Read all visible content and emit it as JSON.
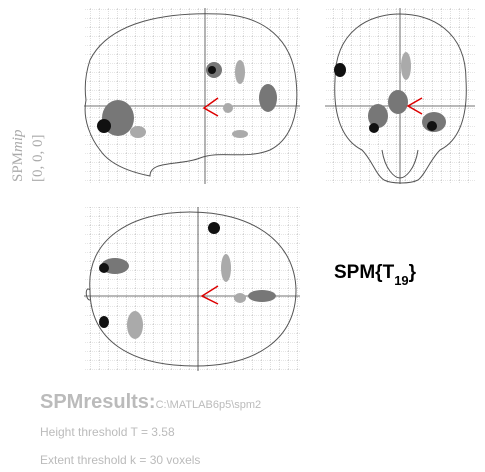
{
  "mip_label": {
    "main": "SPM",
    "italic": "mip",
    "coords": "[0, 0, 0]"
  },
  "stat_label": {
    "main": "SPM{T",
    "subscript": "19",
    "close": "}"
  },
  "results": {
    "title": "SPMresults:",
    "path": "C:\\MATLAB6p5\\spm2",
    "height_threshold": "Height threshold T = 3.58",
    "extent_threshold": "Extent threshold k = 30 voxels"
  }
}
